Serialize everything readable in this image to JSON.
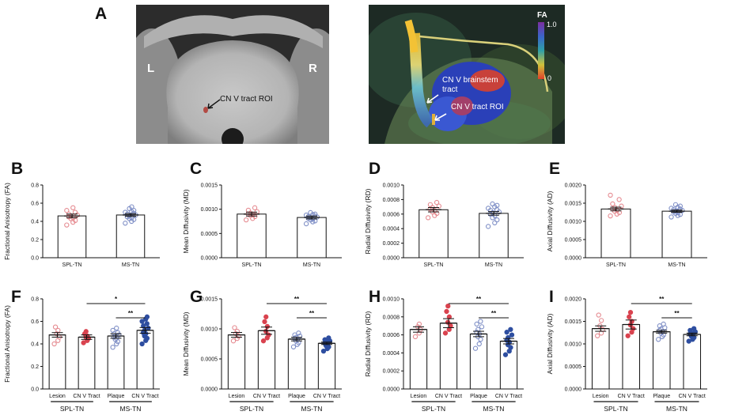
{
  "panels": {
    "A": "A",
    "B": "B",
    "C": "C",
    "D": "D",
    "E": "E",
    "F": "F",
    "G": "G",
    "H": "H",
    "I": "I"
  },
  "panel_a": {
    "left_label": "L",
    "right_label": "R",
    "roi_label": "CN V tract ROI",
    "tract_label_line1": "CN V brainstem",
    "tract_label_line2": "tract",
    "tract_roi_label": "CN V tract ROI",
    "colorbar_title": "FA",
    "colorbar_max": "1.0",
    "colorbar_min": "0"
  },
  "colors": {
    "red_marker": "#d9434f",
    "red_open": "#e58a90",
    "blue_marker": "#2e4ea0",
    "blue_open": "#7f8fc6"
  },
  "chart_data": [
    {
      "panel": "B",
      "type": "bar",
      "ylabel": "Fractional Anisotropy (FA)",
      "yticks": [
        "0.0",
        "0.2",
        "0.4",
        "0.6",
        "0.8"
      ],
      "ylim": [
        0,
        0.8
      ],
      "categories": [
        "SPL-TN",
        "MS-TN"
      ],
      "values": [
        0.46,
        0.47
      ],
      "errors": [
        0.02,
        0.015
      ],
      "points": [
        [
          0.36,
          0.39,
          0.41,
          0.43,
          0.44,
          0.45,
          0.46,
          0.47,
          0.48,
          0.5,
          0.52,
          0.55
        ],
        [
          0.38,
          0.4,
          0.42,
          0.43,
          0.44,
          0.45,
          0.46,
          0.47,
          0.48,
          0.49,
          0.5,
          0.51,
          0.52,
          0.54,
          0.56
        ]
      ],
      "groups": []
    },
    {
      "panel": "C",
      "type": "bar",
      "ylabel": "Mean Diffusivity (MD)",
      "yticks": [
        "0.0000",
        "0.0005",
        "0.0010",
        "0.0015"
      ],
      "ylim": [
        0,
        0.0015
      ],
      "categories": [
        "SPL-TN",
        "MS-TN"
      ],
      "values": [
        0.0009,
        0.00083
      ],
      "errors": [
        4e-05,
        3e-05
      ],
      "points": [
        [
          0.00078,
          0.00081,
          0.00085,
          0.00087,
          0.00089,
          0.0009,
          0.00092,
          0.00095,
          0.00098,
          0.00103
        ],
        [
          0.0007,
          0.00074,
          0.00076,
          0.00078,
          0.0008,
          0.00081,
          0.00083,
          0.00084,
          0.00085,
          0.00086,
          0.00088,
          0.00089,
          0.0009,
          0.00093
        ]
      ],
      "groups": []
    },
    {
      "panel": "D",
      "type": "bar",
      "ylabel": "Radial Diffusivity (RD)",
      "yticks": [
        "0.0000",
        "0.0002",
        "0.0004",
        "0.0006",
        "0.0008",
        "0.0010"
      ],
      "ylim": [
        0,
        0.001
      ],
      "categories": [
        "SPL-TN",
        "MS-TN"
      ],
      "values": [
        0.00066,
        0.00061
      ],
      "errors": [
        3e-05,
        2.5e-05
      ],
      "points": [
        [
          0.00055,
          0.00058,
          0.00061,
          0.00063,
          0.00065,
          0.00067,
          0.00069,
          0.00071,
          0.00073,
          0.00076
        ],
        [
          0.00043,
          0.00048,
          0.00052,
          0.00055,
          0.00058,
          0.0006,
          0.00062,
          0.00063,
          0.00065,
          0.00066,
          0.00068,
          0.0007,
          0.00072,
          0.00074
        ]
      ],
      "groups": []
    },
    {
      "panel": "E",
      "type": "bar",
      "ylabel": "Axial Diffusivity (AD)",
      "yticks": [
        "0.0000",
        "0.0005",
        "0.0010",
        "0.0015",
        "0.0020"
      ],
      "ylim": [
        0,
        0.002
      ],
      "categories": [
        "SPL-TN",
        "MS-TN"
      ],
      "values": [
        0.00134,
        0.00128
      ],
      "errors": [
        5e-05,
        3e-05
      ],
      "points": [
        [
          0.00115,
          0.0012,
          0.00124,
          0.00128,
          0.00131,
          0.00134,
          0.00138,
          0.00142,
          0.00148,
          0.0016,
          0.00172
        ],
        [
          0.00112,
          0.00116,
          0.00119,
          0.00122,
          0.00124,
          0.00126,
          0.00128,
          0.0013,
          0.00132,
          0.00134,
          0.00136,
          0.00139,
          0.00142,
          0.00146
        ]
      ],
      "groups": []
    },
    {
      "panel": "F",
      "type": "bar",
      "ylabel": "Fractional Anisotropy (FA)",
      "yticks": [
        "0.0",
        "0.2",
        "0.4",
        "0.6",
        "0.8"
      ],
      "ylim": [
        0,
        0.8
      ],
      "categories": [
        "Lesion",
        "CN V Tract",
        "Plaque",
        "CN V Tract"
      ],
      "values": [
        0.48,
        0.46,
        0.47,
        0.52
      ],
      "errors": [
        0.02,
        0.02,
        0.02,
        0.025
      ],
      "points": [
        [
          0.4,
          0.43,
          0.46,
          0.49,
          0.52,
          0.55
        ],
        [
          0.41,
          0.43,
          0.45,
          0.46,
          0.47,
          0.49,
          0.51
        ],
        [
          0.37,
          0.4,
          0.42,
          0.44,
          0.45,
          0.46,
          0.47,
          0.48,
          0.49,
          0.5,
          0.52,
          0.54
        ],
        [
          0.4,
          0.43,
          0.45,
          0.47,
          0.49,
          0.5,
          0.52,
          0.54,
          0.56,
          0.58,
          0.6,
          0.62,
          0.64
        ]
      ],
      "groups": [
        "SPL-TN",
        "MS-TN"
      ],
      "significance": [
        {
          "from": 1,
          "to": 3,
          "label": "*"
        },
        {
          "from": 2,
          "to": 3,
          "label": "**"
        }
      ]
    },
    {
      "panel": "G",
      "type": "bar",
      "ylabel": "Mean Diffusivity (MD)",
      "yticks": [
        "0.0000",
        "0.0005",
        "0.0010",
        "0.0015"
      ],
      "ylim": [
        0,
        0.0015
      ],
      "categories": [
        "Lesion",
        "CN V Tract",
        "Plaque",
        "CN V Tract"
      ],
      "values": [
        0.0009,
        0.00097,
        0.00083,
        0.00076
      ],
      "errors": [
        4e-05,
        6e-05,
        3e-05,
        2e-05
      ],
      "points": [
        [
          0.0008,
          0.00084,
          0.00088,
          0.00092,
          0.00096,
          0.00102
        ],
        [
          0.0008,
          0.00085,
          0.0009,
          0.00096,
          0.00104,
          0.00112,
          0.0012
        ],
        [
          0.0007,
          0.00074,
          0.00077,
          0.0008,
          0.00082,
          0.00084,
          0.00086,
          0.00088,
          0.0009,
          0.00093
        ],
        [
          0.00063,
          0.00067,
          0.0007,
          0.00072,
          0.00074,
          0.00076,
          0.00078,
          0.0008,
          0.00082,
          0.00085
        ]
      ],
      "groups": [
        "SPL-TN",
        "MS-TN"
      ],
      "significance": [
        {
          "from": 1,
          "to": 3,
          "label": "**"
        },
        {
          "from": 2,
          "to": 3,
          "label": "**"
        }
      ]
    },
    {
      "panel": "H",
      "type": "bar",
      "ylabel": "Radial Diffusivity (RD)",
      "yticks": [
        "0.0000",
        "0.0002",
        "0.0004",
        "0.0006",
        "0.0008",
        "0.0010"
      ],
      "ylim": [
        0,
        0.001
      ],
      "categories": [
        "Lesion",
        "CN V Tract",
        "Plaque",
        "CN V Tract"
      ],
      "values": [
        0.00066,
        0.00073,
        0.00061,
        0.00053
      ],
      "errors": [
        3e-05,
        5e-05,
        3e-05,
        3e-05
      ],
      "points": [
        [
          0.00058,
          0.00062,
          0.00066,
          0.00069,
          0.00072
        ],
        [
          0.00062,
          0.00066,
          0.0007,
          0.00074,
          0.0008,
          0.00086,
          0.00092
        ],
        [
          0.00045,
          0.0005,
          0.00055,
          0.00058,
          0.00061,
          0.00063,
          0.00066,
          0.00069,
          0.00072,
          0.00075
        ],
        [
          0.00038,
          0.00042,
          0.00046,
          0.00049,
          0.00052,
          0.00054,
          0.00057,
          0.0006,
          0.00063,
          0.00066
        ]
      ],
      "groups": [
        "SPL-TN",
        "MS-TN"
      ],
      "significance": [
        {
          "from": 1,
          "to": 3,
          "label": "**"
        },
        {
          "from": 2,
          "to": 3,
          "label": "**"
        }
      ]
    },
    {
      "panel": "I",
      "type": "bar",
      "ylabel": "Axial Diffusivity (AD)",
      "yticks": [
        "0.0000",
        "0.0005",
        "0.0010",
        "0.0015",
        "0.0020"
      ],
      "ylim": [
        0,
        0.002
      ],
      "categories": [
        "Lesion",
        "CN V Tract",
        "Plaque",
        "CN V Tract"
      ],
      "values": [
        0.00134,
        0.00143,
        0.00127,
        0.00121
      ],
      "errors": [
        6e-05,
        0.0001,
        3e-05,
        3e-05
      ],
      "points": [
        [
          0.00118,
          0.00124,
          0.00132,
          0.0014,
          0.00152,
          0.00164
        ],
        [
          0.00118,
          0.00126,
          0.00134,
          0.00142,
          0.0015,
          0.0016,
          0.0017
        ],
        [
          0.0011,
          0.00116,
          0.0012,
          0.00124,
          0.00127,
          0.0013,
          0.00133,
          0.00136,
          0.0014,
          0.00144
        ],
        [
          0.00106,
          0.0011,
          0.00114,
          0.00117,
          0.0012,
          0.00122,
          0.00124,
          0.00127,
          0.0013,
          0.00134
        ]
      ],
      "groups": [
        "SPL-TN",
        "MS-TN"
      ],
      "significance": [
        {
          "from": 1,
          "to": 3,
          "label": "**"
        },
        {
          "from": 2,
          "to": 3,
          "label": "**"
        }
      ]
    }
  ]
}
